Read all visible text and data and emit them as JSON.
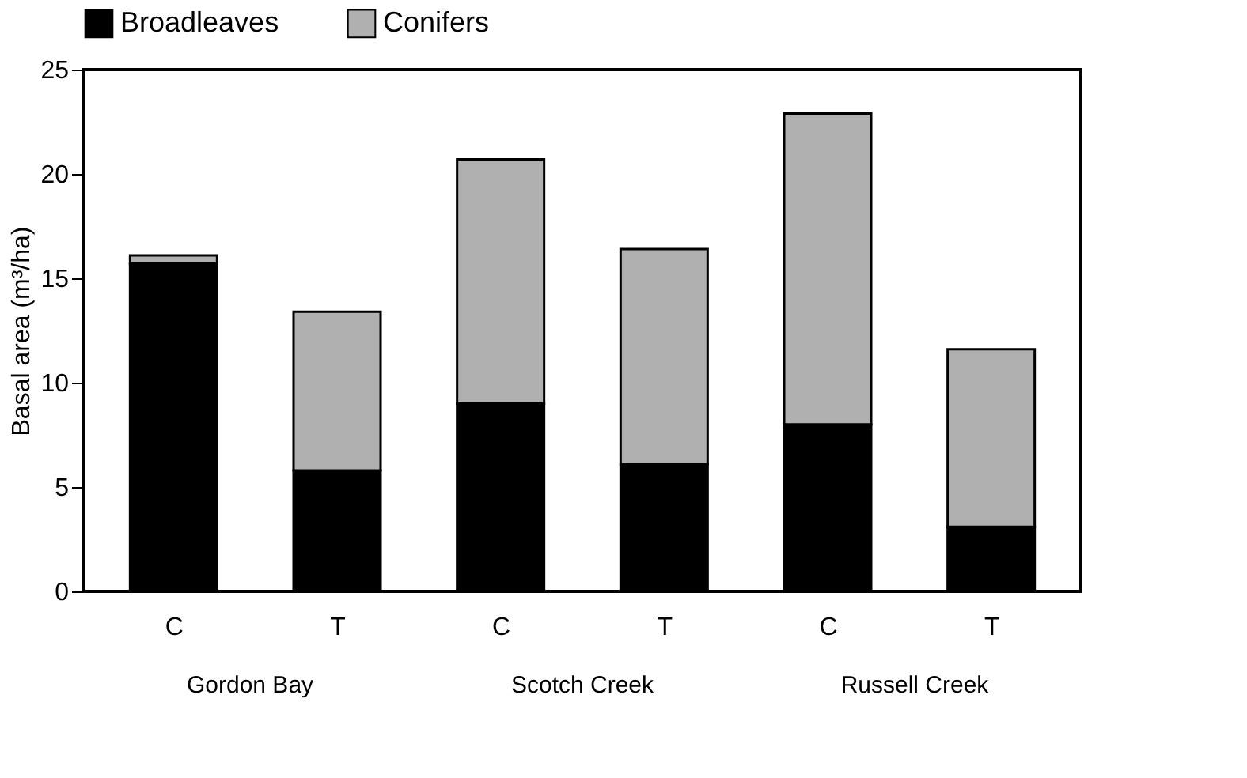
{
  "chart_data": {
    "type": "bar",
    "stacked": true,
    "ylabel": "Basal area (m³/ha)",
    "categories": [
      "C",
      "T",
      "C",
      "T",
      "C",
      "T"
    ],
    "series": [
      {
        "name": "Broadleaves",
        "color": "#000000",
        "values": [
          15.7,
          5.8,
          9.0,
          6.1,
          8.0,
          3.1
        ]
      },
      {
        "name": "Conifers",
        "color": "#b0b0b0",
        "values": [
          0.4,
          7.6,
          11.7,
          10.3,
          14.9,
          8.5
        ]
      }
    ],
    "ylim": [
      0,
      25
    ],
    "yticks": [
      0,
      5,
      10,
      15,
      20,
      25
    ],
    "grid": false,
    "legend": "top",
    "annotations": [
      "Gordon Bay",
      "Scotch Creek",
      "Russell Creek"
    ]
  }
}
